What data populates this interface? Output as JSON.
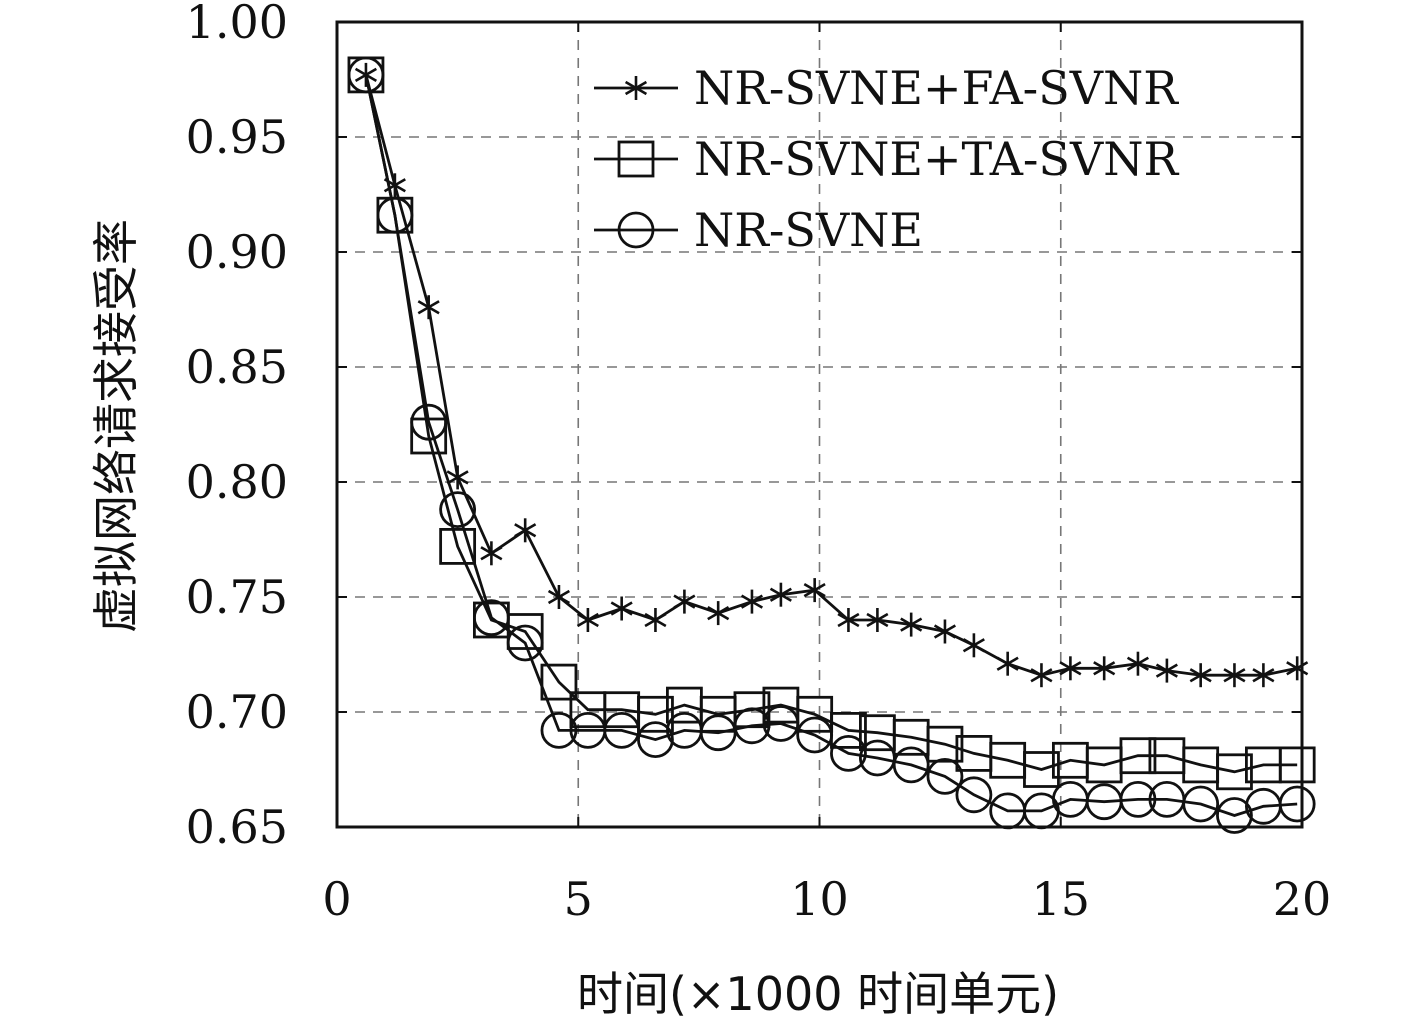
{
  "chart_data": {
    "type": "line",
    "xlabel": "时间(×1000 时间单元)",
    "ylabel": "虚拟网络请求接受率",
    "xlim": [
      0,
      20
    ],
    "ylim": [
      0.65,
      1.0
    ],
    "xticks": [
      0,
      5,
      10,
      15,
      20
    ],
    "xtick_labels": [
      "0",
      "5",
      "10",
      "15",
      "20"
    ],
    "yticks": [
      0.65,
      0.7,
      0.75,
      0.8,
      0.85,
      0.9,
      0.95,
      1.0
    ],
    "ytick_labels": [
      "0.65",
      "0.70",
      "0.75",
      "0.80",
      "0.85",
      "0.90",
      "0.95",
      "1.00"
    ],
    "grid": "dashed",
    "legend_position": "top-right",
    "x": [
      0.6,
      1.2,
      1.9,
      2.5,
      3.2,
      3.9,
      4.6,
      5.2,
      5.9,
      6.6,
      7.2,
      7.9,
      8.6,
      9.2,
      9.9,
      10.6,
      11.2,
      11.9,
      12.6,
      13.2,
      13.9,
      14.6,
      15.2,
      15.9,
      16.6,
      17.2,
      17.9,
      18.6,
      19.2,
      19.9
    ],
    "series": [
      {
        "name": "NR-SVNE+FA-SVNR",
        "marker": "asterisk",
        "values": [
          0.977,
          0.929,
          0.876,
          0.802,
          0.769,
          0.779,
          0.75,
          0.74,
          0.745,
          0.74,
          0.748,
          0.743,
          0.748,
          0.751,
          0.753,
          0.74,
          0.74,
          0.738,
          0.735,
          0.729,
          0.721,
          0.716,
          0.719,
          0.719,
          0.721,
          0.718,
          0.716,
          0.716,
          0.716,
          0.719
        ]
      },
      {
        "name": "NR-SVNE+TA-SVNR",
        "marker": "square",
        "values": [
          0.977,
          0.916,
          0.82,
          0.772,
          0.74,
          0.735,
          0.713,
          0.701,
          0.701,
          0.699,
          0.703,
          0.699,
          0.701,
          0.703,
          0.699,
          0.692,
          0.691,
          0.689,
          0.686,
          0.682,
          0.679,
          0.675,
          0.679,
          0.677,
          0.681,
          0.681,
          0.677,
          0.674,
          0.677,
          0.677
        ]
      },
      {
        "name": "NR-SVNE",
        "marker": "circle",
        "values": [
          0.977,
          0.916,
          0.826,
          0.788,
          0.741,
          0.73,
          0.692,
          0.692,
          0.692,
          0.688,
          0.692,
          0.691,
          0.694,
          0.695,
          0.69,
          0.682,
          0.68,
          0.677,
          0.672,
          0.664,
          0.657,
          0.657,
          0.662,
          0.661,
          0.662,
          0.662,
          0.66,
          0.655,
          0.659,
          0.66
        ]
      }
    ]
  }
}
